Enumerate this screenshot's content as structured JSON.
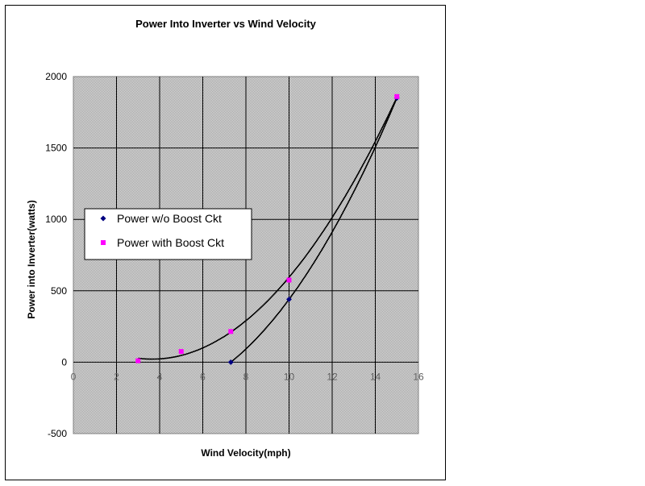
{
  "chart_data": {
    "type": "scatter",
    "title": "Power Into Inverter vs Wind Velocity",
    "xlabel": "Wind Velocity(mph)",
    "ylabel": "Power into Inverter(watts)",
    "xlim": [
      0,
      16
    ],
    "ylim": [
      -500,
      2000
    ],
    "xticks": [
      0,
      2,
      4,
      6,
      8,
      10,
      12,
      14,
      16
    ],
    "yticks": [
      -500,
      0,
      500,
      1000,
      1500,
      2000
    ],
    "grid": true,
    "legend_position": "left",
    "series": [
      {
        "name": "Power w/o Boost Ckt",
        "marker": "diamond",
        "color": "#000080",
        "x": [
          7.3,
          10,
          15
        ],
        "y": [
          0,
          440,
          1850
        ],
        "trendline": true
      },
      {
        "name": "Power with Boost Ckt",
        "marker": "square",
        "color": "#ff00ff",
        "x": [
          3,
          5,
          7.3,
          10,
          15
        ],
        "y": [
          10,
          75,
          215,
          575,
          1860
        ],
        "trendline": true
      }
    ]
  }
}
